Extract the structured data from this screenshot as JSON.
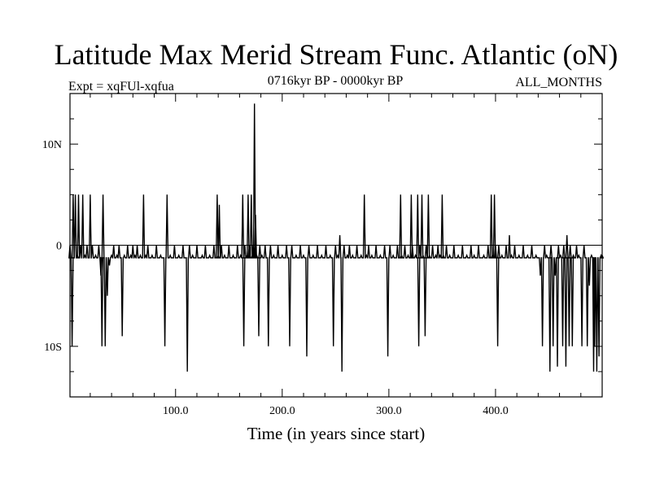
{
  "chart_data": {
    "type": "line",
    "title": "Latitude Max Merid Stream Func. Atlantic (oN)",
    "experiment": "Expt = xqFUl-xqfua",
    "period": "0716kyr BP - 0000kyr BP",
    "season": "ALL_MONTHS",
    "xlabel": "Time (in years since start)",
    "ylabel": "",
    "xlim": [
      1,
      500
    ],
    "ylim": [
      -15,
      15
    ],
    "xticks": [
      100,
      200,
      300,
      400
    ],
    "xtick_labels": [
      "100.0",
      "200.0",
      "300.0",
      "400.0"
    ],
    "yticks": [
      10,
      0,
      -10
    ],
    "ytick_labels": [
      "10N",
      "0",
      "10S"
    ],
    "x_minor_step": 20,
    "y_minor_step": 2.5,
    "zero_line": true,
    "baseline": -1.25,
    "spikes": [
      [
        1,
        0
      ],
      [
        3,
        -10
      ],
      [
        4,
        5
      ],
      [
        6,
        5
      ],
      [
        8,
        -1
      ],
      [
        9,
        5
      ],
      [
        11,
        0
      ],
      [
        13,
        5
      ],
      [
        15,
        -1
      ],
      [
        17,
        0
      ],
      [
        20,
        5
      ],
      [
        22,
        0
      ],
      [
        25,
        -1
      ],
      [
        28,
        0
      ],
      [
        30,
        -3
      ],
      [
        31,
        -10
      ],
      [
        32,
        5
      ],
      [
        34,
        -10
      ],
      [
        36,
        -5
      ],
      [
        38,
        -2
      ],
      [
        40,
        -1
      ],
      [
        42,
        0
      ],
      [
        45,
        -1
      ],
      [
        47,
        0
      ],
      [
        50,
        -9
      ],
      [
        52,
        -1
      ],
      [
        55,
        0
      ],
      [
        58,
        -1
      ],
      [
        60,
        0
      ],
      [
        62,
        -1
      ],
      [
        64,
        0
      ],
      [
        67,
        -1
      ],
      [
        70,
        5
      ],
      [
        72,
        -1
      ],
      [
        74,
        0
      ],
      [
        78,
        -1
      ],
      [
        82,
        0
      ],
      [
        86,
        -1
      ],
      [
        90,
        -10
      ],
      [
        92,
        5
      ],
      [
        95,
        -1
      ],
      [
        99,
        0
      ],
      [
        103,
        -1
      ],
      [
        107,
        0
      ],
      [
        111,
        -12.5
      ],
      [
        113,
        0
      ],
      [
        116,
        -1
      ],
      [
        120,
        0
      ],
      [
        125,
        -1
      ],
      [
        128,
        0
      ],
      [
        132,
        -1
      ],
      [
        136,
        0
      ],
      [
        139,
        5
      ],
      [
        140,
        -1
      ],
      [
        141,
        4
      ],
      [
        143,
        0
      ],
      [
        146,
        -1
      ],
      [
        150,
        0
      ],
      [
        154,
        -1
      ],
      [
        158,
        0
      ],
      [
        161,
        -1
      ],
      [
        163,
        5
      ],
      [
        164,
        -10
      ],
      [
        165,
        0
      ],
      [
        167,
        -1
      ],
      [
        168,
        5
      ],
      [
        169,
        0
      ],
      [
        171,
        5
      ],
      [
        172,
        -1
      ],
      [
        173,
        0
      ],
      [
        174,
        14
      ],
      [
        175,
        3
      ],
      [
        176,
        -1
      ],
      [
        178,
        -9
      ],
      [
        179,
        0
      ],
      [
        181,
        -1
      ],
      [
        184,
        0
      ],
      [
        187,
        -10
      ],
      [
        189,
        0
      ],
      [
        192,
        -1
      ],
      [
        196,
        0
      ],
      [
        200,
        -1
      ],
      [
        204,
        0
      ],
      [
        207,
        -10
      ],
      [
        209,
        0
      ],
      [
        213,
        -1
      ],
      [
        217,
        0
      ],
      [
        220,
        -1
      ],
      [
        223,
        -11
      ],
      [
        225,
        0
      ],
      [
        229,
        -1
      ],
      [
        233,
        0
      ],
      [
        237,
        -1
      ],
      [
        241,
        0
      ],
      [
        245,
        -1
      ],
      [
        248,
        -10
      ],
      [
        250,
        0
      ],
      [
        252,
        -1
      ],
      [
        254,
        1
      ],
      [
        256,
        -12.5
      ],
      [
        258,
        0
      ],
      [
        261,
        -1
      ],
      [
        263,
        0
      ],
      [
        266,
        -1
      ],
      [
        270,
        0
      ],
      [
        274,
        -1
      ],
      [
        277,
        5
      ],
      [
        279,
        -1
      ],
      [
        281,
        0
      ],
      [
        284,
        -1
      ],
      [
        288,
        0
      ],
      [
        292,
        -1
      ],
      [
        296,
        0
      ],
      [
        299,
        -11
      ],
      [
        301,
        0
      ],
      [
        304,
        -1
      ],
      [
        308,
        0
      ],
      [
        311,
        5
      ],
      [
        312,
        -1
      ],
      [
        315,
        0
      ],
      [
        318,
        -1
      ],
      [
        321,
        5
      ],
      [
        322,
        0
      ],
      [
        325,
        -1
      ],
      [
        327,
        5
      ],
      [
        328,
        -10
      ],
      [
        329,
        0
      ],
      [
        331,
        5
      ],
      [
        332,
        -1
      ],
      [
        334,
        -9
      ],
      [
        335,
        0
      ],
      [
        337,
        5
      ],
      [
        338,
        -1
      ],
      [
        341,
        0
      ],
      [
        344,
        -1
      ],
      [
        346,
        0
      ],
      [
        348,
        -1
      ],
      [
        350,
        5
      ],
      [
        351,
        -1
      ],
      [
        354,
        0
      ],
      [
        357,
        -1
      ],
      [
        361,
        0
      ],
      [
        365,
        -1
      ],
      [
        369,
        0
      ],
      [
        373,
        -1
      ],
      [
        377,
        0
      ],
      [
        380,
        -1
      ],
      [
        384,
        0
      ],
      [
        389,
        -1
      ],
      [
        393,
        0
      ],
      [
        396,
        5
      ],
      [
        397,
        -1
      ],
      [
        399,
        5
      ],
      [
        400,
        0
      ],
      [
        402,
        -10
      ],
      [
        403,
        0
      ],
      [
        406,
        -1
      ],
      [
        410,
        0
      ],
      [
        413,
        1
      ],
      [
        415,
        -1
      ],
      [
        418,
        0
      ],
      [
        422,
        -1
      ],
      [
        426,
        0
      ],
      [
        430,
        -1
      ],
      [
        434,
        0
      ],
      [
        438,
        -1
      ],
      [
        442,
        -3
      ],
      [
        444,
        -10
      ],
      [
        446,
        0
      ],
      [
        448,
        -1
      ],
      [
        451,
        -12.5
      ],
      [
        452,
        0
      ],
      [
        454,
        -10
      ],
      [
        456,
        -3
      ],
      [
        458,
        -12
      ],
      [
        459,
        0
      ],
      [
        461,
        -1
      ],
      [
        463,
        -10
      ],
      [
        464,
        0
      ],
      [
        466,
        -12
      ],
      [
        467,
        1
      ],
      [
        469,
        -10
      ],
      [
        470,
        0
      ],
      [
        472,
        -10
      ],
      [
        473,
        -1
      ],
      [
        476,
        0
      ],
      [
        478,
        -1
      ],
      [
        481,
        -10
      ],
      [
        483,
        0
      ],
      [
        486,
        -10
      ],
      [
        488,
        -4
      ],
      [
        490,
        -1
      ],
      [
        492,
        -12.5
      ],
      [
        493,
        -10
      ],
      [
        495,
        -12.5
      ],
      [
        497,
        -11
      ],
      [
        499,
        -1
      ],
      [
        500,
        -1
      ]
    ]
  }
}
